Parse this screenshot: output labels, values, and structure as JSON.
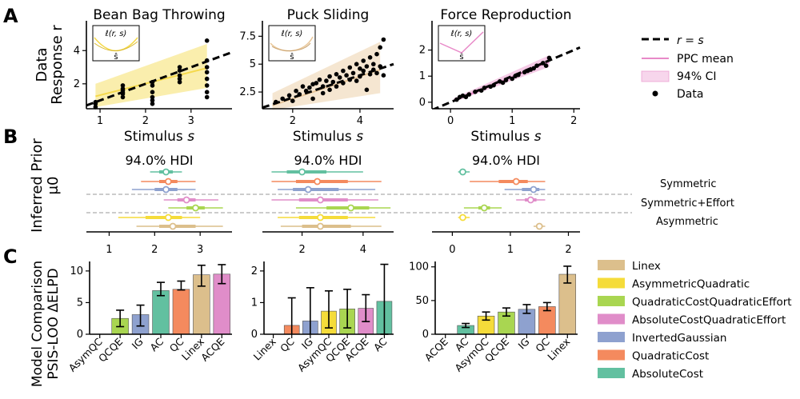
{
  "panel_labels": {
    "a": "A",
    "b": "B",
    "c": "C"
  },
  "row_labels": {
    "a": [
      "Data",
      "Response r"
    ],
    "b": [
      "Inferred Prior",
      "μ0"
    ],
    "c": [
      "Model Comparison",
      "PSIS-LOO ΔELPD"
    ]
  },
  "inset": {
    "title": "ℓ(r, s)",
    "xlabel": "ŝ"
  },
  "colors": {
    "Linex": "#dcbf8c",
    "AsymmetricQuadratic": "#f5dc3a",
    "QuadraticCostQuadraticEffort": "#a9d651",
    "AbsoluteCostQuadraticEffort": "#e08dc9",
    "InvertedGaussian": "#8ea1cf",
    "QuadraticCost": "#f48a5e",
    "AbsoluteCost": "#62c0a0",
    "Bean": "#f5d94a",
    "Puck": "#e9c79a",
    "Force": "#e889c8"
  },
  "legend_a": [
    {
      "label": "r = s",
      "kind": "dash"
    },
    {
      "label": "PPC mean",
      "kind": "line"
    },
    {
      "label": "94% CI",
      "kind": "patch"
    },
    {
      "label": "Data",
      "kind": "dot"
    }
  ],
  "legend_c": [
    {
      "label": "Linex",
      "key": "Linex"
    },
    {
      "label": "AsymmetricQuadratic",
      "key": "AsymmetricQuadratic"
    },
    {
      "label": "QuadraticCostQuadraticEffort",
      "key": "QuadraticCostQuadraticEffort"
    },
    {
      "label": "AbsoluteCostQuadraticEffort",
      "key": "AbsoluteCostQuadraticEffort"
    },
    {
      "label": "InvertedGaussian",
      "key": "InvertedGaussian"
    },
    {
      "label": "QuadraticCost",
      "key": "QuadraticCost"
    },
    {
      "label": "AbsoluteCost",
      "key": "AbsoluteCost"
    }
  ],
  "group_labels": [
    "Symmetric",
    "Symmetric+Effort",
    "Asymmetric"
  ],
  "chart_data": [
    {
      "type": "scatter",
      "title": "Bean Bag Throwing",
      "xlabel": "Stimulus s",
      "ylabel": "Response r",
      "xlim": [
        0.7,
        3.9
      ],
      "ylim": [
        0.5,
        5.6
      ],
      "xticks": [
        1,
        2,
        3
      ],
      "yticks": [
        2,
        4
      ],
      "color_key": "Bean",
      "identity": [
        [
          0.7,
          0.7
        ],
        [
          3.9,
          3.9
        ]
      ],
      "ppc_mean": [
        [
          0.9,
          1.25
        ],
        [
          3.35,
          2.95
        ]
      ],
      "ci_lower": [
        [
          0.9,
          0.6
        ],
        [
          3.35,
          1.75
        ]
      ],
      "ci_upper": [
        [
          0.9,
          2.0
        ],
        [
          3.35,
          4.4
        ]
      ],
      "points": [
        [
          0.9,
          0.6
        ],
        [
          0.9,
          0.8
        ],
        [
          0.9,
          0.9
        ],
        [
          1.5,
          1.2
        ],
        [
          1.5,
          1.4
        ],
        [
          1.5,
          1.6
        ],
        [
          1.5,
          1.7
        ],
        [
          1.5,
          1.9
        ],
        [
          2.15,
          0.8
        ],
        [
          2.15,
          1.0
        ],
        [
          2.15,
          1.2
        ],
        [
          2.15,
          1.5
        ],
        [
          2.15,
          1.9
        ],
        [
          2.15,
          2.1
        ],
        [
          2.75,
          2.1
        ],
        [
          2.75,
          2.3
        ],
        [
          2.75,
          2.5
        ],
        [
          2.75,
          2.8
        ],
        [
          2.75,
          3.0
        ],
        [
          3.35,
          1.2
        ],
        [
          3.35,
          1.5
        ],
        [
          3.35,
          1.9
        ],
        [
          3.35,
          2.3
        ],
        [
          3.35,
          2.7
        ],
        [
          3.35,
          3.0
        ],
        [
          3.35,
          3.4
        ],
        [
          3.35,
          4.6
        ]
      ]
    },
    {
      "type": "scatter",
      "title": "Puck Sliding",
      "xlabel": "Stimulus s",
      "ylabel": "",
      "xlim": [
        1.1,
        5.0
      ],
      "ylim": [
        1.0,
        8.6
      ],
      "xticks": [
        2,
        4
      ],
      "yticks": [
        2.5,
        5.0,
        7.5
      ],
      "color_key": "Puck",
      "identity": [
        [
          1.1,
          1.1
        ],
        [
          5.0,
          5.0
        ]
      ],
      "ppc_mean": [
        [
          1.4,
          1.3
        ],
        [
          4.6,
          4.5
        ]
      ],
      "ci_lower": [
        [
          1.4,
          0.9
        ],
        [
          4.6,
          2.4
        ]
      ],
      "ci_upper": [
        [
          1.4,
          2.4
        ],
        [
          4.6,
          7.0
        ]
      ],
      "points": [
        [
          1.5,
          1.6
        ],
        [
          1.7,
          1.9
        ],
        [
          1.9,
          2.2
        ],
        [
          2.0,
          1.7
        ],
        [
          2.1,
          2.6
        ],
        [
          2.2,
          2.3
        ],
        [
          2.3,
          3.0
        ],
        [
          2.4,
          2.6
        ],
        [
          2.5,
          2.9
        ],
        [
          2.6,
          3.2
        ],
        [
          2.6,
          1.9
        ],
        [
          2.7,
          3.3
        ],
        [
          2.8,
          3.6
        ],
        [
          2.9,
          3.0
        ],
        [
          2.9,
          2.4
        ],
        [
          3.0,
          3.5
        ],
        [
          3.1,
          2.7
        ],
        [
          3.1,
          3.9
        ],
        [
          3.2,
          3.4
        ],
        [
          3.3,
          4.1
        ],
        [
          3.3,
          3.0
        ],
        [
          3.4,
          3.8
        ],
        [
          3.5,
          4.4
        ],
        [
          3.5,
          3.3
        ],
        [
          3.6,
          4.0
        ],
        [
          3.7,
          4.7
        ],
        [
          3.7,
          3.6
        ],
        [
          3.8,
          4.2
        ],
        [
          3.9,
          5.0
        ],
        [
          3.9,
          3.5
        ],
        [
          4.0,
          4.6
        ],
        [
          4.0,
          3.9
        ],
        [
          4.1,
          5.3
        ],
        [
          4.1,
          4.4
        ],
        [
          4.2,
          4.8
        ],
        [
          4.2,
          2.7
        ],
        [
          4.3,
          5.6
        ],
        [
          4.3,
          4.1
        ],
        [
          4.4,
          5.0
        ],
        [
          4.4,
          4.5
        ],
        [
          4.5,
          5.9
        ],
        [
          4.5,
          4.2
        ],
        [
          4.6,
          4.8
        ],
        [
          4.6,
          6.5
        ],
        [
          4.7,
          7.2
        ],
        [
          4.7,
          4.0
        ]
      ]
    },
    {
      "type": "scatter",
      "title": "Force Reproduction",
      "xlabel": "Stimulus s",
      "ylabel": "",
      "xlim": [
        -0.3,
        2.1
      ],
      "ylim": [
        -0.25,
        3.0
      ],
      "xticks": [
        0,
        1,
        2
      ],
      "yticks": [
        0,
        1,
        2
      ],
      "color_key": "Force",
      "identity": [
        [
          -0.3,
          -0.3
        ],
        [
          2.1,
          2.1
        ]
      ],
      "ppc_mean": [
        [
          0.05,
          0.05
        ],
        [
          1.6,
          1.55
        ]
      ],
      "ci_lower": [
        [
          0.05,
          0.0
        ],
        [
          1.6,
          1.35
        ]
      ],
      "ci_upper": [
        [
          0.05,
          0.15
        ],
        [
          1.6,
          1.8
        ]
      ],
      "points": [
        [
          0.1,
          0.1
        ],
        [
          0.15,
          0.2
        ],
        [
          0.2,
          0.25
        ],
        [
          0.25,
          0.2
        ],
        [
          0.3,
          0.3
        ],
        [
          0.4,
          0.4
        ],
        [
          0.5,
          0.45
        ],
        [
          0.55,
          0.55
        ],
        [
          0.65,
          0.6
        ],
        [
          0.7,
          0.65
        ],
        [
          0.8,
          0.8
        ],
        [
          0.85,
          0.75
        ],
        [
          0.9,
          0.85
        ],
        [
          1.0,
          0.9
        ],
        [
          1.05,
          1.0
        ],
        [
          1.1,
          1.05
        ],
        [
          1.2,
          1.15
        ],
        [
          1.25,
          1.2
        ],
        [
          1.3,
          1.25
        ],
        [
          1.35,
          1.3
        ],
        [
          1.4,
          1.4
        ],
        [
          1.5,
          1.5
        ],
        [
          1.55,
          1.4
        ],
        [
          1.6,
          1.7
        ]
      ]
    },
    {
      "type": "forest",
      "title": "94.0% HDI",
      "xlim": [
        0.5,
        3.7
      ],
      "xticks": [
        1,
        2,
        3
      ],
      "rows": [
        {
          "key": "AbsoluteCost",
          "mean": 2.25,
          "hdi": [
            1.9,
            2.6
          ],
          "iqr": [
            2.1,
            2.4
          ]
        },
        {
          "key": "QuadraticCost",
          "mean": 2.3,
          "hdi": [
            1.7,
            2.9
          ],
          "iqr": [
            2.1,
            2.5
          ]
        },
        {
          "key": "InvertedGaussian",
          "mean": 2.25,
          "hdi": [
            1.5,
            2.9
          ],
          "iqr": [
            2.0,
            2.5
          ]
        },
        {
          "key": "AbsoluteCostQuadraticEffort",
          "mean": 2.7,
          "hdi": [
            2.2,
            3.4
          ],
          "iqr": [
            2.5,
            2.9
          ]
        },
        {
          "key": "QuadraticCostQuadraticEffort",
          "mean": 2.9,
          "hdi": [
            2.3,
            3.5
          ],
          "iqr": [
            2.7,
            3.1
          ]
        },
        {
          "key": "AsymmetricQuadratic",
          "mean": 2.3,
          "hdi": [
            1.2,
            3.0
          ],
          "iqr": [
            1.8,
            2.6
          ]
        },
        {
          "key": "Linex",
          "mean": 2.4,
          "hdi": [
            1.6,
            3.5
          ],
          "iqr": [
            2.1,
            2.9
          ]
        }
      ]
    },
    {
      "type": "forest",
      "title": "94.0% HDI",
      "xlim": [
        0.7,
        5.0
      ],
      "xticks": [
        2,
        4
      ],
      "rows": [
        {
          "key": "AbsoluteCost",
          "mean": 2.0,
          "hdi": [
            1.0,
            4.0
          ],
          "iqr": [
            1.5,
            2.8
          ]
        },
        {
          "key": "QuadraticCost",
          "mean": 2.5,
          "hdi": [
            1.0,
            4.6
          ],
          "iqr": [
            1.8,
            3.5
          ]
        },
        {
          "key": "InvertedGaussian",
          "mean": 2.2,
          "hdi": [
            1.2,
            4.4
          ],
          "iqr": [
            1.7,
            3.2
          ]
        },
        {
          "key": "AbsoluteCostQuadraticEffort",
          "mean": 2.6,
          "hdi": [
            1.0,
            4.5
          ],
          "iqr": [
            1.9,
            3.5
          ]
        },
        {
          "key": "QuadraticCostQuadraticEffort",
          "mean": 3.6,
          "hdi": [
            1.8,
            4.9
          ],
          "iqr": [
            2.8,
            4.2
          ]
        },
        {
          "key": "AsymmetricQuadratic",
          "mean": 2.6,
          "hdi": [
            1.2,
            4.4
          ],
          "iqr": [
            1.9,
            3.5
          ]
        },
        {
          "key": "Linex",
          "mean": 2.6,
          "hdi": [
            1.3,
            4.6
          ],
          "iqr": [
            2.0,
            3.6
          ]
        }
      ]
    },
    {
      "type": "forest",
      "title": "94.0% HDI",
      "xlim": [
        -0.35,
        2.2
      ],
      "xticks": [
        0,
        1,
        2
      ],
      "rows": [
        {
          "key": "AbsoluteCost",
          "mean": 0.18,
          "hdi": [
            0.1,
            0.3
          ],
          "iqr": [
            0.15,
            0.22
          ]
        },
        {
          "key": "QuadraticCost",
          "mean": 1.1,
          "hdi": [
            0.3,
            1.6
          ],
          "iqr": [
            0.8,
            1.3
          ]
        },
        {
          "key": "InvertedGaussian",
          "mean": 1.4,
          "hdi": [
            0.9,
            1.6
          ],
          "iqr": [
            1.2,
            1.5
          ]
        },
        {
          "key": "AbsoluteCostQuadraticEffort",
          "mean": 1.35,
          "hdi": [
            1.1,
            1.6
          ],
          "iqr": [
            1.25,
            1.45
          ]
        },
        {
          "key": "QuadraticCostQuadraticEffort",
          "mean": 0.55,
          "hdi": [
            0.2,
            0.85
          ],
          "iqr": [
            0.45,
            0.65
          ]
        },
        {
          "key": "AsymmetricQuadratic",
          "mean": 0.18,
          "hdi": [
            0.1,
            0.3
          ],
          "iqr": [
            0.15,
            0.22
          ]
        },
        {
          "key": "Linex",
          "mean": 1.5,
          "hdi": [
            1.4,
            1.6
          ],
          "iqr": [
            1.45,
            1.55
          ]
        }
      ]
    },
    {
      "type": "bar",
      "categories": [
        "AsymQC",
        "QCQE",
        "IG",
        "AC",
        "QC",
        "Linex",
        "ACQE"
      ],
      "keys": [
        "AsymmetricQuadratic",
        "QuadraticCostQuadraticEffort",
        "InvertedGaussian",
        "AbsoluteCost",
        "QuadraticCost",
        "Linex",
        "AbsoluteCostQuadraticEffort"
      ],
      "values": [
        0,
        2.5,
        3.1,
        6.9,
        7.1,
        9.4,
        9.5
      ],
      "err_low": [
        0,
        1.2,
        1.3,
        6.1,
        7.0,
        7.6,
        8.0
      ],
      "err_high": [
        0,
        3.8,
        4.6,
        8.2,
        8.4,
        10.9,
        11.0
      ],
      "ylim": [
        0,
        11.5
      ],
      "yticks": [
        0,
        5,
        10
      ]
    },
    {
      "type": "bar",
      "categories": [
        "Linex",
        "QC",
        "IG",
        "AsymQC",
        "QCQE",
        "ACQE",
        "AC"
      ],
      "keys": [
        "Linex",
        "QuadraticCost",
        "InvertedGaussian",
        "AsymmetricQuadratic",
        "QuadraticCostQuadraticEffort",
        "AbsoluteCostQuadraticEffort",
        "AbsoluteCost"
      ],
      "values": [
        0,
        0.28,
        0.42,
        0.73,
        0.8,
        0.82,
        1.04
      ],
      "err_low": [
        0,
        -0.4,
        -0.3,
        0.2,
        0.2,
        0.4,
        0.0
      ],
      "err_high": [
        0,
        1.15,
        1.47,
        1.37,
        1.42,
        1.25,
        2.21
      ],
      "ylim": [
        0,
        2.3
      ],
      "yticks": [
        0,
        1,
        2
      ]
    },
    {
      "type": "bar",
      "categories": [
        "ACQE",
        "AC",
        "AsymQC",
        "QCQE",
        "IG",
        "QC",
        "Linex"
      ],
      "keys": [
        "AbsoluteCostQuadraticEffort",
        "AbsoluteCost",
        "AsymmetricQuadratic",
        "QuadraticCostQuadraticEffort",
        "InvertedGaussian",
        "QuadraticCost",
        "Linex"
      ],
      "values": [
        0,
        13,
        27,
        33,
        37,
        41,
        89
      ],
      "err_low": [
        0,
        10,
        21,
        27,
        31,
        35,
        76
      ],
      "err_high": [
        0,
        16,
        33,
        39,
        44,
        47,
        101
      ],
      "ylim": [
        0,
        108
      ],
      "yticks": [
        0,
        50,
        100
      ]
    }
  ]
}
